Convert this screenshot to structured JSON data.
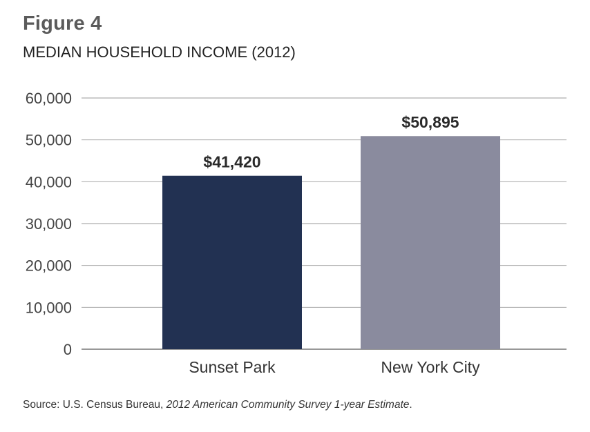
{
  "figure": {
    "label": "Figure 4",
    "title": "MEDIAN HOUSEHOLD INCOME (2012)"
  },
  "chart_data": {
    "type": "bar",
    "title": "MEDIAN HOUSEHOLD INCOME (2012)",
    "categories": [
      "Sunset Park",
      "New York City"
    ],
    "values": [
      41420,
      50895
    ],
    "data_labels": [
      "$41,420",
      "$50,895"
    ],
    "colors": [
      "#223152",
      "#8a8b9e"
    ],
    "ylim": [
      0,
      60000
    ],
    "yticks": [
      0,
      10000,
      20000,
      30000,
      40000,
      50000,
      60000
    ],
    "ytick_labels": [
      "0",
      "10,000",
      "20,000",
      "30,000",
      "40,000",
      "50,000",
      "60,000"
    ],
    "grid": true,
    "legend": "none",
    "xlabel": "",
    "ylabel": ""
  },
  "source": {
    "prefix": "Source: U.S. Census Bureau, ",
    "italic": "2012 American Community Survey 1-year Estimate",
    "suffix": "."
  }
}
